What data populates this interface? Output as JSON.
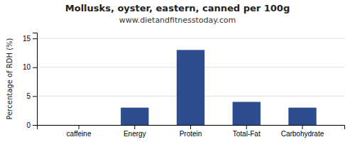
{
  "chart_data": {
    "type": "bar",
    "title": "Mollusks, oyster, eastern, canned per 100g",
    "subtitle": "www.dietandfitnesstoday.com",
    "ylabel": "Percentage of RDH (%)",
    "categories": [
      "caffeine",
      "Energy",
      "Protein",
      "Total-Fat",
      "Carbohydrate"
    ],
    "values": [
      0,
      3,
      13,
      4,
      3
    ],
    "color": "#2d4d8e",
    "ylim": [
      0,
      16
    ],
    "yticks": [
      0,
      5,
      10,
      15
    ],
    "grid": true
  }
}
